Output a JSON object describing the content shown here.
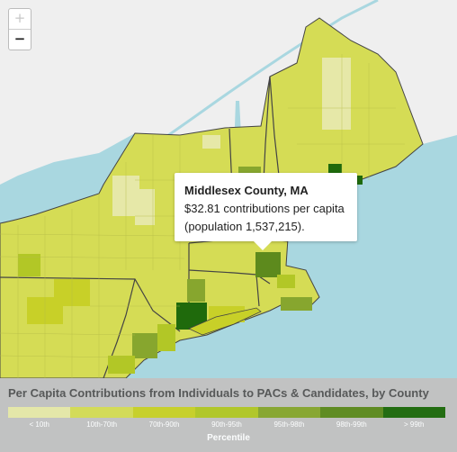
{
  "zoom": {
    "in_label": "+",
    "out_label": "−"
  },
  "tooltip": {
    "title": "Middlesex County, MA",
    "line1": "$32.81 contributions per capita",
    "line2": "(population 1,537,215)."
  },
  "legend": {
    "title": "Per Capita Contributions from Individuals to PACs & Candidates, by County",
    "axis_label": "Percentile",
    "bins": [
      {
        "label": "< 10th",
        "color": "#e6e8a8"
      },
      {
        "label": "10th-70th",
        "color": "#d5dc55"
      },
      {
        "label": "70th-90th",
        "color": "#c8d028"
      },
      {
        "label": "90th-95th",
        "color": "#b2c726"
      },
      {
        "label": "95th-98th",
        "color": "#87a62e"
      },
      {
        "label": "98th-99th",
        "color": "#5d8a1d"
      },
      {
        "label": "> 99th",
        "color": "#1f6a0c"
      }
    ]
  },
  "colors": {
    "water": "#a9d7e0",
    "canada": "#efefef",
    "border": "#444444"
  }
}
